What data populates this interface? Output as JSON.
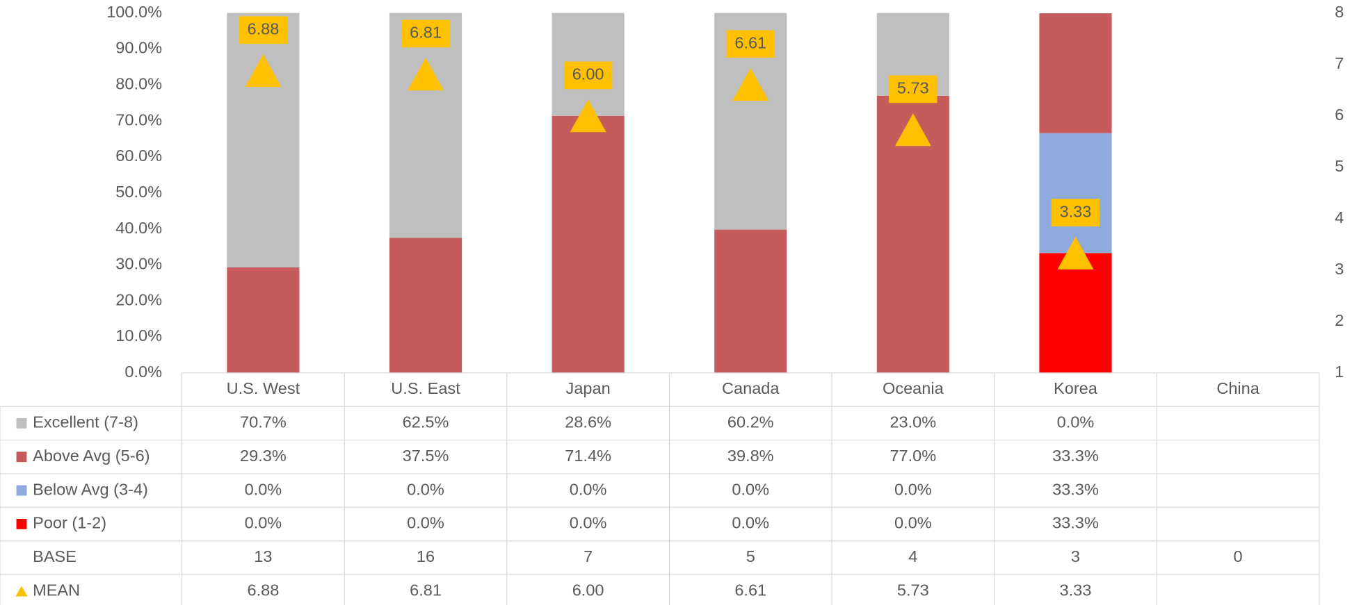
{
  "chart_data": {
    "type": "bar",
    "stacked": true,
    "categories": [
      "U.S. West",
      "U.S. East",
      "Japan",
      "Canada",
      "Oceania",
      "Korea",
      "China"
    ],
    "series": [
      {
        "name": "Excellent (7-8)",
        "color": "#bfbfbf",
        "values": [
          70.7,
          62.5,
          28.6,
          60.2,
          23.0,
          0.0,
          null
        ],
        "value_labels": [
          "70.7%",
          "62.5%",
          "28.6%",
          "60.2%",
          "23.0%",
          "0.0%",
          null
        ]
      },
      {
        "name": "Above Avg (5-6)",
        "color": "#c65b5c",
        "values": [
          29.3,
          37.5,
          71.4,
          39.8,
          77.0,
          33.3,
          null
        ],
        "value_labels": [
          "29.3%",
          "37.5%",
          "71.4%",
          "39.8%",
          "77.0%",
          "33.3%",
          null
        ]
      },
      {
        "name": "Below Avg (3-4)",
        "color": "#8eaadb",
        "values": [
          0.0,
          0.0,
          0.0,
          0.0,
          0.0,
          33.3,
          null
        ],
        "value_labels": [
          "0.0%",
          "0.0%",
          "0.0%",
          "0.0%",
          "0.0%",
          "33.3%",
          null
        ]
      },
      {
        "name": "Poor (1-2)",
        "color": "#ff0000",
        "values": [
          0.0,
          0.0,
          0.0,
          0.0,
          0.0,
          33.3,
          null
        ],
        "value_labels": [
          "0.0%",
          "0.0%",
          "0.0%",
          "0.0%",
          "0.0%",
          "33.3%",
          null
        ]
      }
    ],
    "base": {
      "name": "BASE",
      "values": [
        13,
        16,
        7,
        5,
        4,
        3,
        0
      ]
    },
    "mean": {
      "name": "MEAN",
      "color": "#ffc000",
      "axis": "y2",
      "values": [
        6.88,
        6.81,
        6.0,
        6.61,
        5.73,
        3.33,
        null
      ],
      "value_labels": [
        "6.88",
        "6.81",
        "6.00",
        "6.61",
        "5.73",
        "3.33",
        null
      ]
    },
    "ylim": [
      0,
      100
    ],
    "yticks": [
      {
        "value": 0,
        "label": "0.0%"
      },
      {
        "value": 10,
        "label": "10.0%"
      },
      {
        "value": 20,
        "label": "20.0%"
      },
      {
        "value": 30,
        "label": "30.0%"
      },
      {
        "value": 40,
        "label": "40.0%"
      },
      {
        "value": 50,
        "label": "50.0%"
      },
      {
        "value": 60,
        "label": "60.0%"
      },
      {
        "value": 70,
        "label": "70.0%"
      },
      {
        "value": 80,
        "label": "80.0%"
      },
      {
        "value": 90,
        "label": "90.0%"
      },
      {
        "value": 100,
        "label": "100.0%"
      }
    ],
    "y2lim": [
      1,
      8
    ],
    "y2ticks": [
      1,
      2,
      3,
      4,
      5,
      6,
      7,
      8
    ],
    "grid": false
  }
}
